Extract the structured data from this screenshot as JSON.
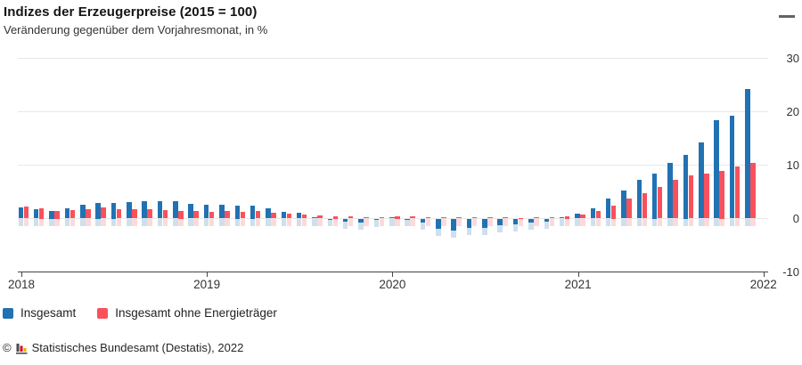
{
  "header": {
    "title": "Indizes der Erzeugerpreise (2015 = 100)",
    "subtitle": "Veränderung gegenüber dem Vorjahresmonat, in %"
  },
  "menu": {
    "icon": "hamburger-icon",
    "tooltip": "Chart context menu"
  },
  "chart_data": {
    "type": "bar",
    "title": "Indizes der Erzeugerpreise (2015 = 100)",
    "subtitle": "Veränderung gegenüber dem Vorjahresmonat, in %",
    "unit": "%",
    "grid": true,
    "legend_position": "bottom-left",
    "ylim": [
      -10,
      31
    ],
    "yticks": [
      30,
      20,
      10,
      0,
      -10
    ],
    "xticks": [
      "2018",
      "2019",
      "2020",
      "2021",
      "2022"
    ],
    "categories": [
      "2018-01",
      "2018-02",
      "2018-03",
      "2018-04",
      "2018-05",
      "2018-06",
      "2018-07",
      "2018-08",
      "2018-09",
      "2018-10",
      "2018-11",
      "2018-12",
      "2019-01",
      "2019-02",
      "2019-03",
      "2019-04",
      "2019-05",
      "2019-06",
      "2019-07",
      "2019-08",
      "2019-09",
      "2019-10",
      "2019-11",
      "2019-12",
      "2020-01",
      "2020-02",
      "2020-03",
      "2020-04",
      "2020-05",
      "2020-06",
      "2020-07",
      "2020-08",
      "2020-09",
      "2020-10",
      "2020-11",
      "2020-12",
      "2021-01",
      "2021-02",
      "2021-03",
      "2021-04",
      "2021-05",
      "2021-06",
      "2021-07",
      "2021-08",
      "2021-09",
      "2021-10",
      "2021-11",
      "2021-12"
    ],
    "series": [
      {
        "name": "Insgesamt",
        "color": "#2172b2",
        "values": [
          2.1,
          1.8,
          1.5,
          1.9,
          2.6,
          3.0,
          3.0,
          3.1,
          3.2,
          3.3,
          3.2,
          2.7,
          2.6,
          2.6,
          2.5,
          2.5,
          1.9,
          1.2,
          1.1,
          0.3,
          -0.1,
          -0.6,
          -0.7,
          -0.2,
          0.2,
          -0.1,
          -0.8,
          -1.9,
          -2.2,
          -1.8,
          -1.7,
          -1.2,
          -1.0,
          -0.7,
          -0.5,
          0.2,
          0.9,
          1.9,
          3.7,
          5.2,
          7.2,
          8.5,
          10.4,
          12.0,
          14.2,
          18.4,
          19.2,
          24.2
        ]
      },
      {
        "name": "Insgesamt ohne Energieträger",
        "color": "#f9515b",
        "values": [
          2.2,
          2.0,
          1.5,
          1.6,
          1.8,
          2.1,
          1.8,
          1.8,
          1.7,
          1.6,
          1.5,
          1.4,
          1.3,
          1.4,
          1.3,
          1.4,
          1.1,
          0.9,
          0.8,
          0.6,
          0.5,
          0.4,
          0.3,
          0.3,
          0.5,
          0.4,
          0.3,
          0.3,
          0.2,
          0.2,
          0.3,
          0.3,
          0.1,
          0.2,
          0.3,
          0.5,
          0.8,
          1.4,
          2.5,
          3.8,
          4.8,
          5.9,
          7.3,
          8.1,
          8.4,
          9.0,
          9.7,
          10.4
        ]
      }
    ]
  },
  "footer": {
    "copyright": "©",
    "source": "Statistisches Bundesamt (Destatis), 2022"
  }
}
